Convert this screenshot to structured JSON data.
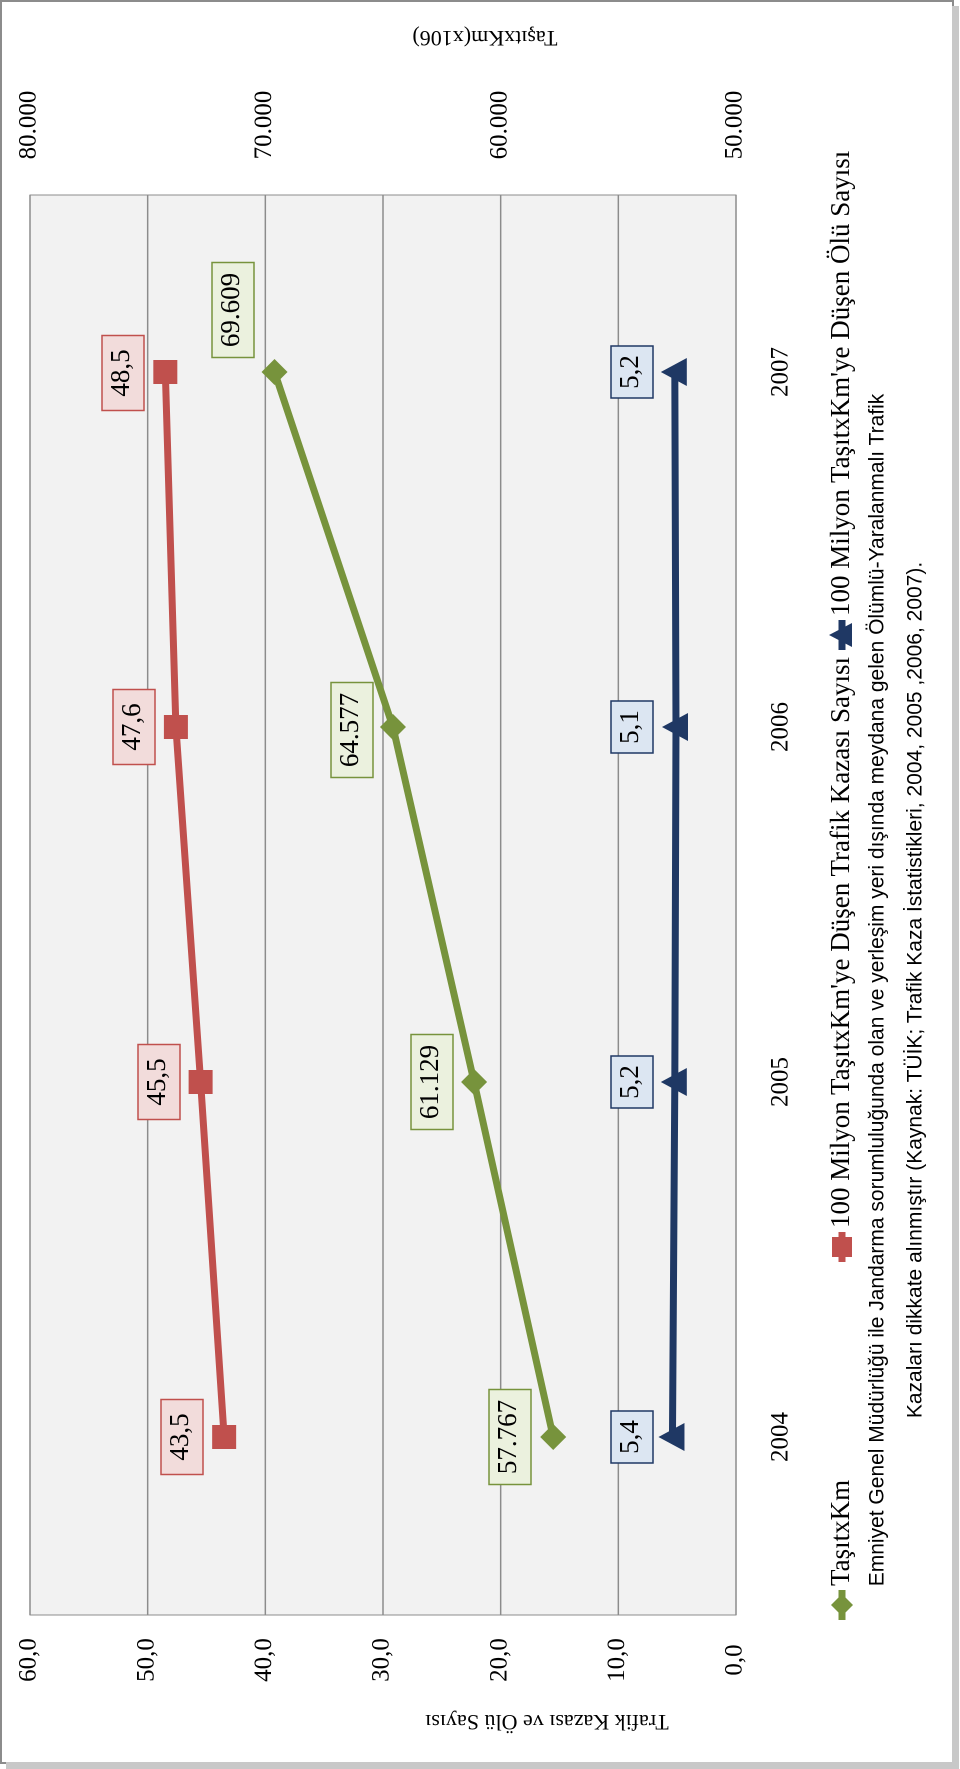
{
  "chart_data": {
    "type": "line",
    "orientation_note": "",
    "categories": [
      "2004",
      "2005",
      "2006",
      "2007"
    ],
    "y_left": {
      "label": "Trafik Kazası ve Ölü Sayısı",
      "range": [
        0,
        60
      ],
      "ticks": [
        "0,0",
        "10,0",
        "20,0",
        "30,0",
        "40,0",
        "50,0",
        "60,0"
      ]
    },
    "y_right": {
      "label": "TaşıtxKm(x106)",
      "range": [
        50000,
        80000
      ],
      "ticks": [
        "50.000",
        "60.000",
        "70.000",
        "80.000"
      ]
    },
    "grid": true,
    "legend_position": "bottom",
    "series": [
      {
        "name": "TaşıtxKm",
        "axis": "right",
        "values": [
          57767,
          61129,
          64577,
          69609
        ],
        "labels": [
          "57.767",
          "61.129",
          "64.577",
          "69.609"
        ],
        "color": "#77933c",
        "label_bg": "#ebf1de",
        "marker": "diamond"
      },
      {
        "name": "100 Milyon TaşıtxKm'ye Düşen Trafik Kazası Sayısı",
        "axis": "left",
        "values": [
          43.5,
          45.5,
          47.6,
          48.5
        ],
        "labels": [
          "43,5",
          "45,5",
          "47,6",
          "48,5"
        ],
        "color": "#c0504d",
        "label_bg": "#f2dcdb",
        "marker": "square"
      },
      {
        "name": "100 Milyon TaşıtxKm'ye Düşen Ölü Sayısı",
        "axis": "left",
        "values": [
          5.4,
          5.2,
          5.1,
          5.2
        ],
        "labels": [
          "5,4",
          "5,2",
          "5,1",
          "5,2"
        ],
        "color": "#1f3864",
        "label_bg": "#dce6f2",
        "marker": "triangle"
      }
    ]
  },
  "note": {
    "line1": "Emniyet Genel Müdürlüğü ile Jandarma sorumluluğunda olan ve yerleşim yeri dışında meydana gelen Ölümlü-Yaralanmalı Trafik",
    "line2": "Kazaları dikkate alınmıştır (Kaynak: TÜİK; Trafik Kaza İstatistikleri, 2004, 2005 ,2006, 2007)."
  }
}
